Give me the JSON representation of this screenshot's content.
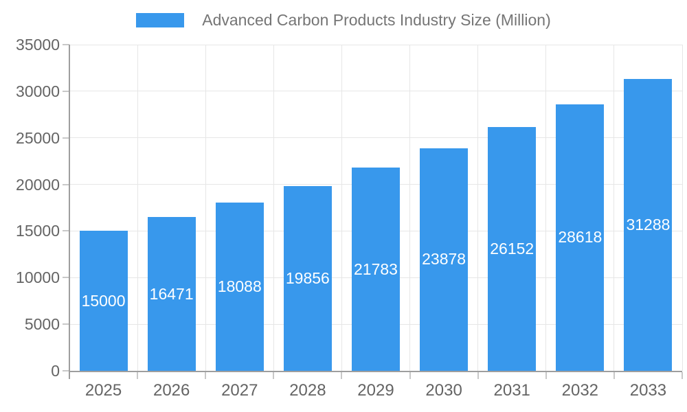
{
  "colors": {
    "bar": "#3898EC",
    "axis": "#9E9E9E",
    "grid": "#E6E6E6",
    "tick": "#C8C8C8",
    "axis_label": "#646464",
    "title": "#757575",
    "bar_label": "#FFFFFF",
    "background": "#FFFFFF"
  },
  "chart_data": {
    "type": "bar",
    "title": "Advanced Carbon Products Industry Size (Million)",
    "categories": [
      "2025",
      "2026",
      "2027",
      "2028",
      "2029",
      "2030",
      "2031",
      "2032",
      "2033"
    ],
    "values": [
      15000,
      16471,
      18088,
      19856,
      21783,
      23878,
      26152,
      28618,
      31288
    ],
    "xlabel": "",
    "ylabel": "",
    "ylim": [
      0,
      35000
    ],
    "yticks": [
      0,
      5000,
      10000,
      15000,
      20000,
      25000,
      30000,
      35000
    ],
    "grid": true,
    "legend_position": "top",
    "bar_value_labels": "inside-centered"
  }
}
